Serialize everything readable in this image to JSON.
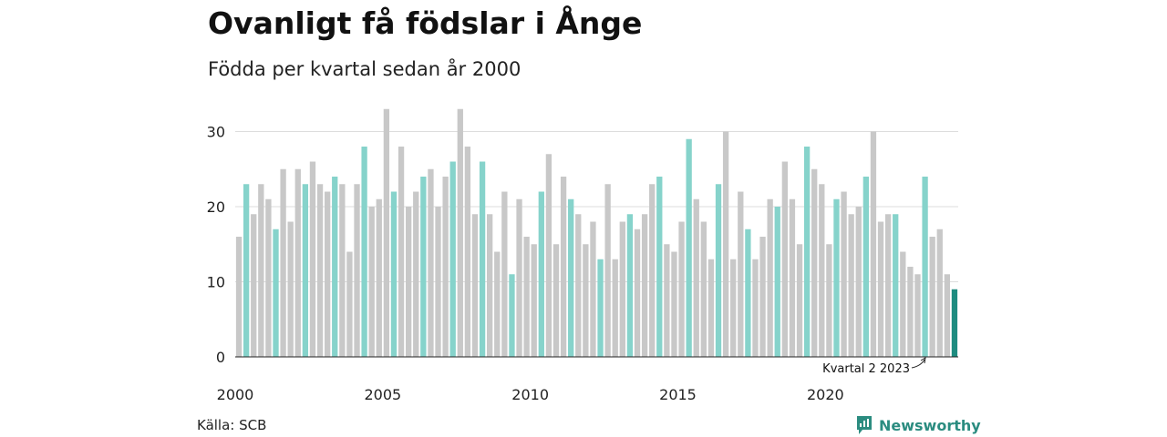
{
  "title": "Ovanligt få födslar i Ånge",
  "subtitle": "Födda per kvartal sedan år 2000",
  "source": "Källa: SCB",
  "brand": "Newsworthy",
  "colors": {
    "other": "#c8c8c8",
    "q2": "#86d3cb",
    "highlight": "#1e8c80",
    "grid": "#dddddd"
  },
  "chart_data": {
    "type": "bar",
    "title": "Ovanligt få födslar i Ånge",
    "subtitle": "Födda per kvartal sedan år 2000",
    "ylim": [
      0,
      34
    ],
    "yticks": [
      0,
      10,
      20,
      30
    ],
    "xticks": [
      "2000",
      "2005",
      "2010",
      "2015",
      "2020"
    ],
    "start": "2000 Q1",
    "grid": true,
    "highlight_rule": "Kvartal 2 highlighted in teal; latest quarter (Kvartal 2 2023) in dark teal",
    "annotation": "Kvartal 2 2023",
    "values": [
      16,
      23,
      19,
      23,
      21,
      17,
      25,
      18,
      25,
      23,
      26,
      23,
      22,
      24,
      23,
      14,
      23,
      28,
      20,
      21,
      33,
      22,
      28,
      20,
      22,
      24,
      25,
      20,
      24,
      26,
      33,
      28,
      19,
      26,
      19,
      14,
      22,
      11,
      21,
      16,
      15,
      22,
      27,
      15,
      24,
      21,
      19,
      15,
      18,
      13,
      23,
      13,
      18,
      19,
      17,
      19,
      23,
      24,
      15,
      14,
      18,
      29,
      21,
      18,
      13,
      23,
      30,
      13,
      22,
      17,
      13,
      16,
      21,
      20,
      26,
      21,
      15,
      28,
      25,
      23,
      15,
      21,
      22,
      19,
      20,
      24,
      30,
      18,
      19,
      19,
      14,
      12,
      11,
      24,
      16,
      17,
      11,
      9
    ]
  }
}
